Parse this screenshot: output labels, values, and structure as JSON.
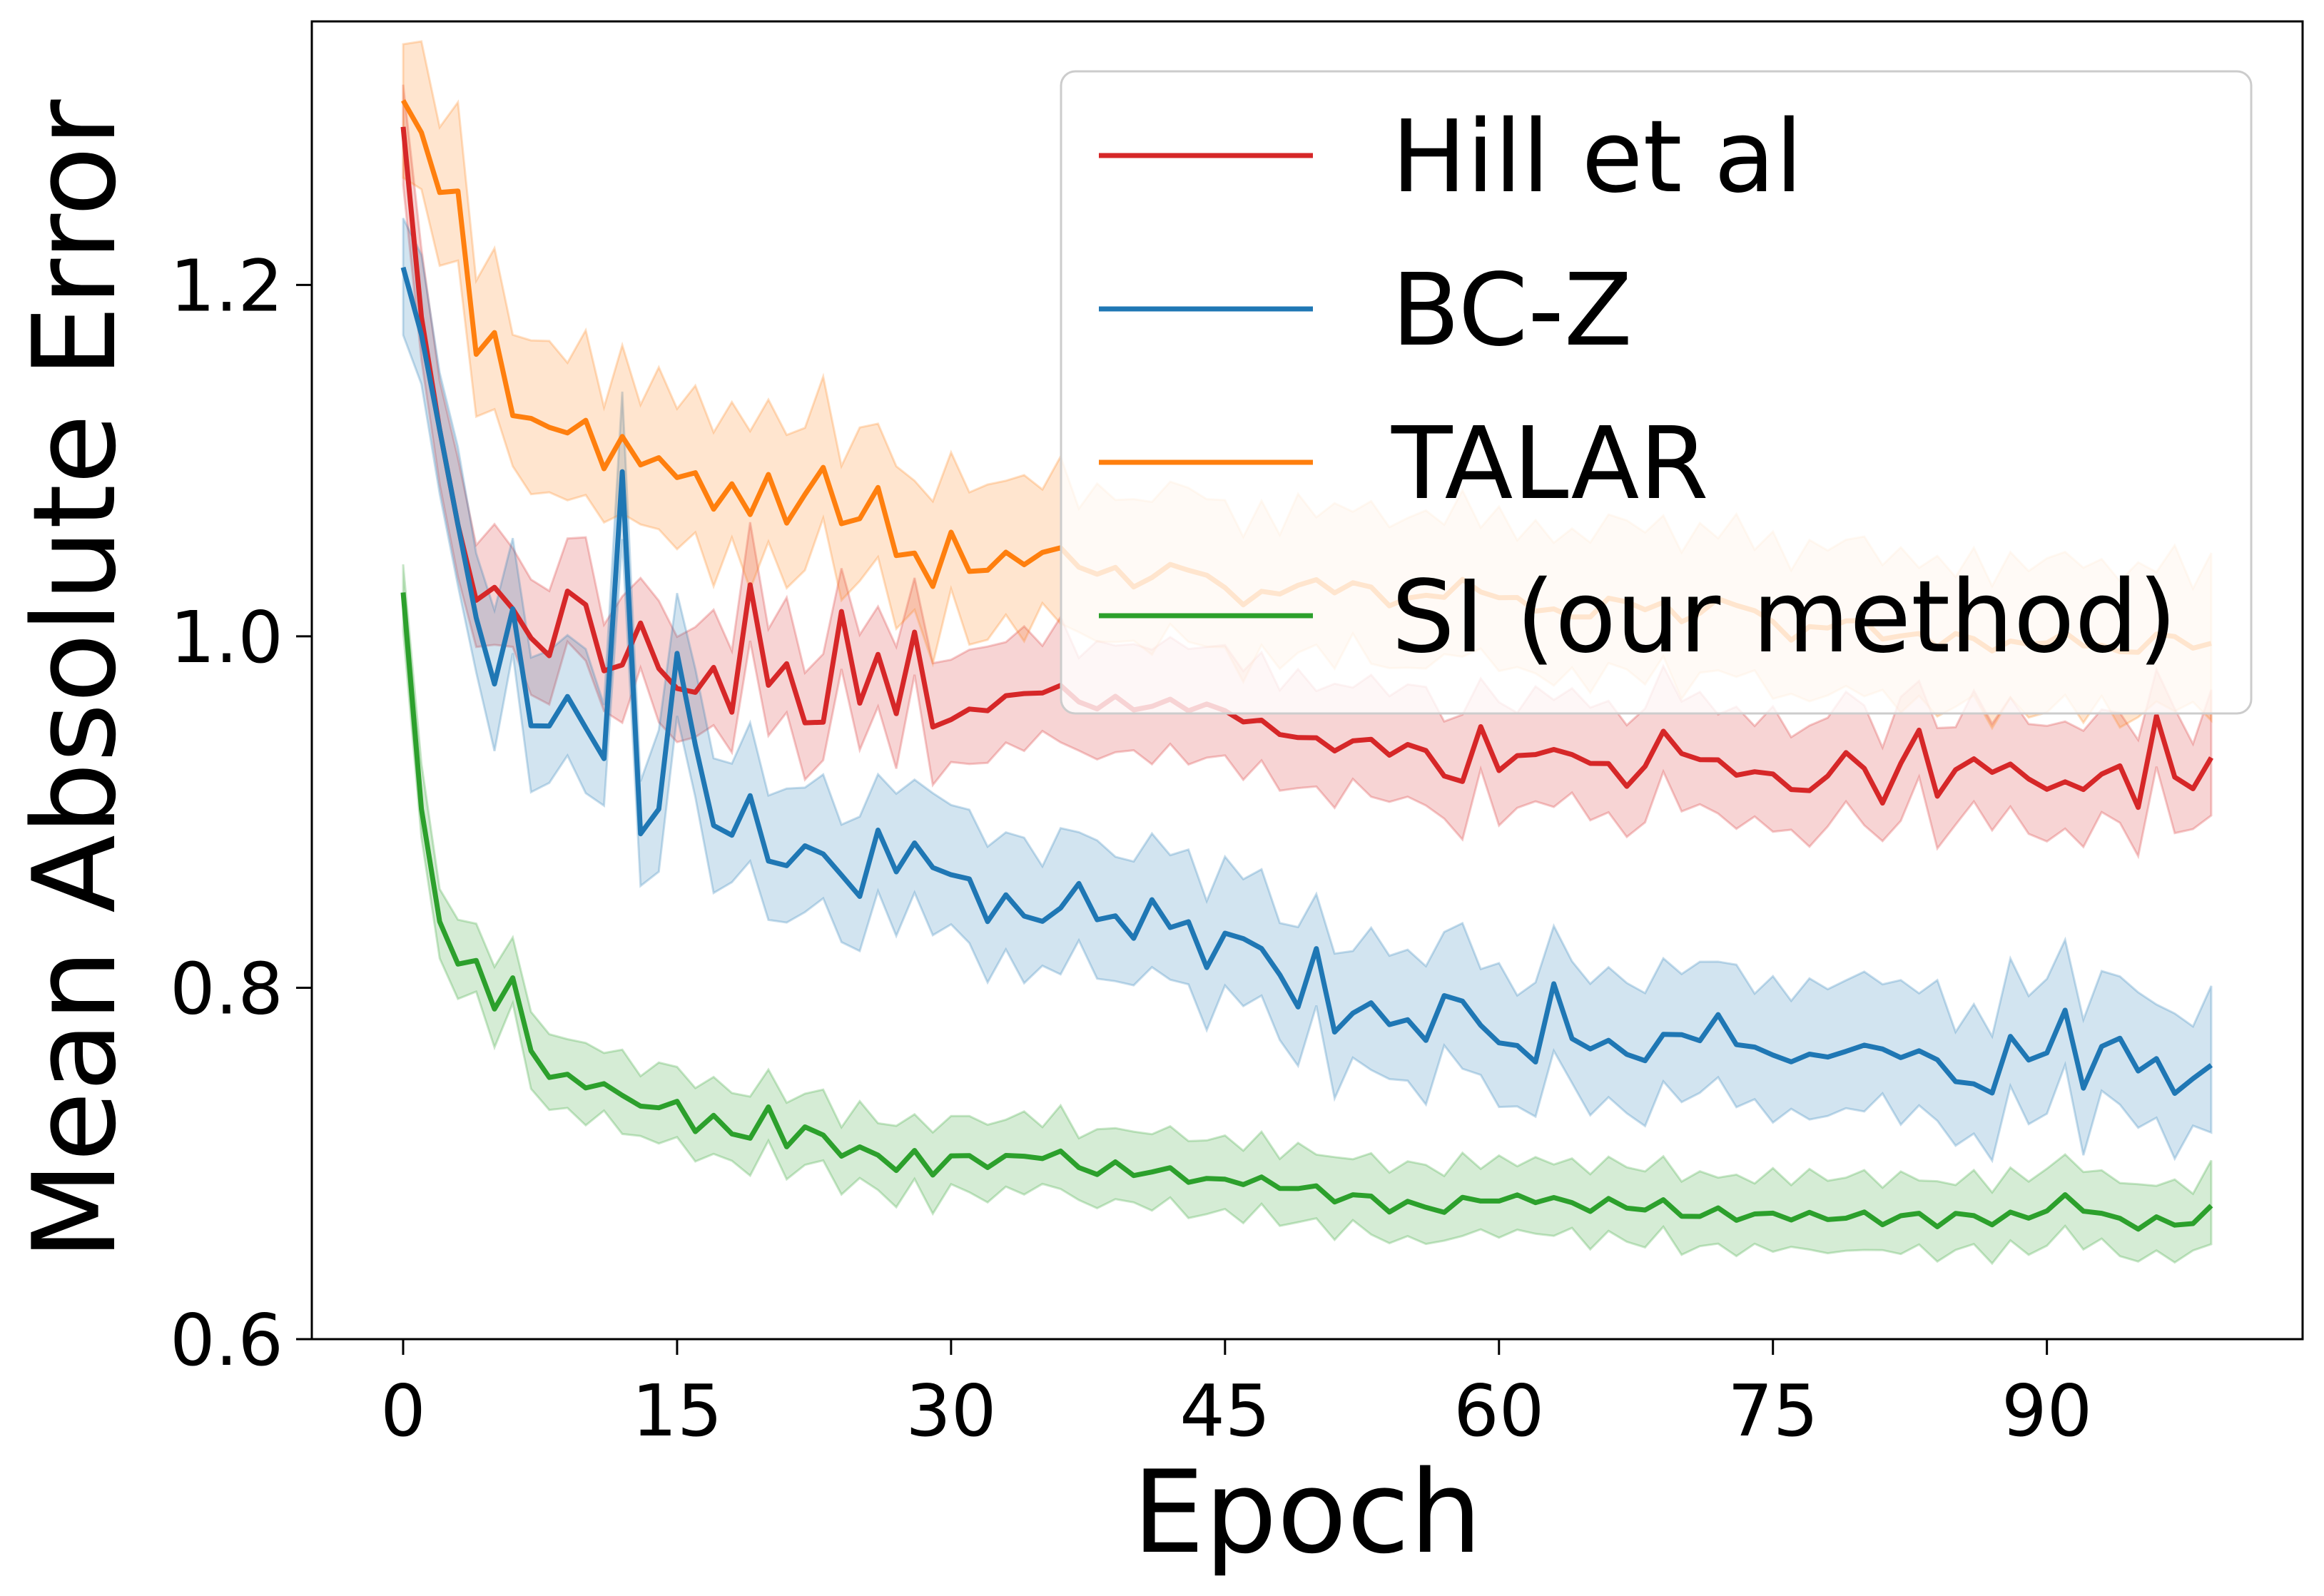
{
  "chart_data": {
    "type": "line",
    "title": "",
    "xlabel": "Epoch",
    "ylabel": "Mean Absolute Error",
    "xlim": [
      -5,
      104
    ],
    "ylim": [
      0.6,
      1.35
    ],
    "xticks": [
      0,
      15,
      30,
      45,
      60,
      75,
      90
    ],
    "yticks": [
      0.6,
      0.8,
      1.0,
      1.2
    ],
    "ytick_labels": [
      "0.6",
      "0.8",
      "1.0",
      "1.2"
    ],
    "grid": false,
    "legend_position": "top-right",
    "series": [
      {
        "name": "Hill et al",
        "color": "#d62728",
        "anchors": [
          [
            0,
            1.29
          ],
          [
            1,
            1.18
          ],
          [
            2,
            1.12
          ],
          [
            3,
            1.06
          ],
          [
            4,
            1.02
          ],
          [
            5,
            1.03
          ],
          [
            6,
            1.01
          ],
          [
            8,
            0.99
          ],
          [
            9,
            1.02
          ],
          [
            10,
            1.02
          ],
          [
            11,
            0.98
          ],
          [
            12,
            0.98
          ],
          [
            13,
            1.01
          ],
          [
            14,
            0.98
          ],
          [
            15,
            0.97
          ],
          [
            16,
            0.97
          ],
          [
            17,
            0.98
          ],
          [
            18,
            0.96
          ],
          [
            19,
            1.03
          ],
          [
            20,
            0.97
          ],
          [
            21,
            0.99
          ],
          [
            22,
            0.95
          ],
          [
            23,
            0.95
          ],
          [
            24,
            1.02
          ],
          [
            25,
            0.96
          ],
          [
            26,
            0.99
          ],
          [
            27,
            0.96
          ],
          [
            28,
            1.0
          ],
          [
            29,
            0.95
          ],
          [
            32,
            0.96
          ],
          [
            35,
            0.97
          ],
          [
            38,
            0.96
          ],
          [
            41,
            0.96
          ],
          [
            44,
            0.96
          ],
          [
            47,
            0.95
          ],
          [
            50,
            0.94
          ],
          [
            53,
            0.94
          ],
          [
            56,
            0.935
          ],
          [
            58,
            0.915
          ],
          [
            59,
            0.95
          ],
          [
            60,
            0.925
          ],
          [
            62,
            0.935
          ],
          [
            65,
            0.93
          ],
          [
            67,
            0.915
          ],
          [
            69,
            0.94
          ],
          [
            72,
            0.925
          ],
          [
            75,
            0.92
          ],
          [
            77,
            0.91
          ],
          [
            79,
            0.935
          ],
          [
            81,
            0.91
          ],
          [
            83,
            0.945
          ],
          [
            84,
            0.915
          ],
          [
            86,
            0.93
          ],
          [
            88,
            0.925
          ],
          [
            90,
            0.915
          ],
          [
            92,
            0.915
          ],
          [
            94,
            0.925
          ],
          [
            95,
            0.905
          ],
          [
            96,
            0.95
          ],
          [
            97,
            0.92
          ],
          [
            98,
            0.915
          ],
          [
            99,
            0.925
          ]
        ],
        "band": 0.03
      },
      {
        "name": "BC-Z",
        "color": "#1f77b4",
        "anchors": [
          [
            0,
            1.21
          ],
          [
            1,
            1.17
          ],
          [
            2,
            1.12
          ],
          [
            3,
            1.06
          ],
          [
            4,
            1.01
          ],
          [
            5,
            0.975
          ],
          [
            6,
            1.01
          ],
          [
            7,
            0.95
          ],
          [
            8,
            0.95
          ],
          [
            9,
            0.96
          ],
          [
            10,
            0.95
          ],
          [
            11,
            0.93
          ],
          [
            12,
            1.09
          ],
          [
            13,
            0.89
          ],
          [
            14,
            0.9
          ],
          [
            15,
            0.99
          ],
          [
            16,
            0.94
          ],
          [
            17,
            0.89
          ],
          [
            18,
            0.89
          ],
          [
            19,
            0.91
          ],
          [
            20,
            0.87
          ],
          [
            22,
            0.88
          ],
          [
            24,
            0.87
          ],
          [
            25,
            0.85
          ],
          [
            26,
            0.89
          ],
          [
            27,
            0.87
          ],
          [
            28,
            0.88
          ],
          [
            29,
            0.87
          ],
          [
            31,
            0.86
          ],
          [
            32,
            0.84
          ],
          [
            33,
            0.85
          ],
          [
            34,
            0.84
          ],
          [
            36,
            0.84
          ],
          [
            37,
            0.86
          ],
          [
            38,
            0.84
          ],
          [
            40,
            0.83
          ],
          [
            41,
            0.85
          ],
          [
            42,
            0.83
          ],
          [
            43,
            0.84
          ],
          [
            44,
            0.81
          ],
          [
            45,
            0.83
          ],
          [
            46,
            0.83
          ],
          [
            48,
            0.81
          ],
          [
            49,
            0.79
          ],
          [
            50,
            0.82
          ],
          [
            51,
            0.78
          ],
          [
            53,
            0.79
          ],
          [
            55,
            0.78
          ],
          [
            56,
            0.77
          ],
          [
            57,
            0.8
          ],
          [
            58,
            0.79
          ],
          [
            59,
            0.78
          ],
          [
            60,
            0.77
          ],
          [
            62,
            0.76
          ],
          [
            63,
            0.8
          ],
          [
            64,
            0.77
          ],
          [
            66,
            0.765
          ],
          [
            68,
            0.76
          ],
          [
            70,
            0.775
          ],
          [
            71,
            0.77
          ],
          [
            72,
            0.78
          ],
          [
            73,
            0.77
          ],
          [
            75,
            0.76
          ],
          [
            77,
            0.76
          ],
          [
            79,
            0.765
          ],
          [
            80,
            0.765
          ],
          [
            81,
            0.77
          ],
          [
            82,
            0.76
          ],
          [
            84,
            0.765
          ],
          [
            85,
            0.745
          ],
          [
            86,
            0.745
          ],
          [
            87,
            0.745
          ],
          [
            88,
            0.77
          ],
          [
            89,
            0.76
          ],
          [
            90,
            0.765
          ],
          [
            91,
            0.785
          ],
          [
            92,
            0.745
          ],
          [
            93,
            0.765
          ],
          [
            94,
            0.77
          ],
          [
            95,
            0.755
          ],
          [
            96,
            0.755
          ],
          [
            97,
            0.74
          ],
          [
            98,
            0.75
          ],
          [
            99,
            0.75
          ]
        ],
        "band": 0.035
      },
      {
        "name": "TALAR",
        "color": "#ff7f0e",
        "anchors": [
          [
            0,
            1.305
          ],
          [
            1,
            1.285
          ],
          [
            2,
            1.255
          ],
          [
            3,
            1.25
          ],
          [
            4,
            1.16
          ],
          [
            5,
            1.175
          ],
          [
            6,
            1.12
          ],
          [
            7,
            1.125
          ],
          [
            8,
            1.12
          ],
          [
            9,
            1.11
          ],
          [
            10,
            1.125
          ],
          [
            11,
            1.095
          ],
          [
            12,
            1.11
          ],
          [
            13,
            1.1
          ],
          [
            14,
            1.1
          ],
          [
            15,
            1.09
          ],
          [
            16,
            1.095
          ],
          [
            17,
            1.07
          ],
          [
            18,
            1.09
          ],
          [
            19,
            1.07
          ],
          [
            20,
            1.09
          ],
          [
            21,
            1.07
          ],
          [
            22,
            1.08
          ],
          [
            23,
            1.095
          ],
          [
            24,
            1.07
          ],
          [
            25,
            1.065
          ],
          [
            26,
            1.085
          ],
          [
            27,
            1.05
          ],
          [
            28,
            1.045
          ],
          [
            29,
            1.03
          ],
          [
            30,
            1.06
          ],
          [
            31,
            1.035
          ],
          [
            33,
            1.045
          ],
          [
            34,
            1.04
          ],
          [
            35,
            1.05
          ],
          [
            37,
            1.04
          ],
          [
            40,
            1.03
          ],
          [
            43,
            1.04
          ],
          [
            46,
            1.02
          ],
          [
            49,
            1.03
          ],
          [
            52,
            1.03
          ],
          [
            55,
            1.02
          ],
          [
            58,
            1.03
          ],
          [
            61,
            1.02
          ],
          [
            64,
            1.01
          ],
          [
            67,
            1.02
          ],
          [
            70,
            1.01
          ],
          [
            73,
            1.02
          ],
          [
            76,
            1.0
          ],
          [
            79,
            1.01
          ],
          [
            82,
            1.0
          ],
          [
            85,
            1.0
          ],
          [
            88,
            0.995
          ],
          [
            91,
            1.0
          ],
          [
            94,
            0.99
          ],
          [
            97,
            1.0
          ],
          [
            99,
            0.99
          ]
        ],
        "band": 0.04
      },
      {
        "name": "SI (our method)",
        "color": "#2ca02c",
        "anchors": [
          [
            0,
            1.025
          ],
          [
            1,
            0.9
          ],
          [
            2,
            0.84
          ],
          [
            3,
            0.81
          ],
          [
            4,
            0.815
          ],
          [
            5,
            0.79
          ],
          [
            6,
            0.8
          ],
          [
            7,
            0.765
          ],
          [
            8,
            0.75
          ],
          [
            9,
            0.745
          ],
          [
            10,
            0.745
          ],
          [
            11,
            0.745
          ],
          [
            12,
            0.735
          ],
          [
            13,
            0.735
          ],
          [
            14,
            0.73
          ],
          [
            15,
            0.735
          ],
          [
            16,
            0.72
          ],
          [
            17,
            0.725
          ],
          [
            18,
            0.72
          ],
          [
            19,
            0.715
          ],
          [
            20,
            0.73
          ],
          [
            21,
            0.715
          ],
          [
            22,
            0.72
          ],
          [
            24,
            0.71
          ],
          [
            26,
            0.705
          ],
          [
            27,
            0.7
          ],
          [
            28,
            0.705
          ],
          [
            29,
            0.695
          ],
          [
            30,
            0.705
          ],
          [
            32,
            0.7
          ],
          [
            35,
            0.705
          ],
          [
            38,
            0.695
          ],
          [
            41,
            0.695
          ],
          [
            44,
            0.69
          ],
          [
            47,
            0.69
          ],
          [
            50,
            0.685
          ],
          [
            53,
            0.68
          ],
          [
            56,
            0.675
          ],
          [
            59,
            0.68
          ],
          [
            62,
            0.68
          ],
          [
            65,
            0.675
          ],
          [
            68,
            0.675
          ],
          [
            71,
            0.67
          ],
          [
            74,
            0.67
          ],
          [
            77,
            0.67
          ],
          [
            80,
            0.67
          ],
          [
            83,
            0.67
          ],
          [
            86,
            0.67
          ],
          [
            89,
            0.67
          ],
          [
            91,
            0.68
          ],
          [
            93,
            0.67
          ],
          [
            95,
            0.665
          ],
          [
            97,
            0.665
          ],
          [
            99,
            0.67
          ]
        ],
        "band": 0.02
      }
    ]
  }
}
